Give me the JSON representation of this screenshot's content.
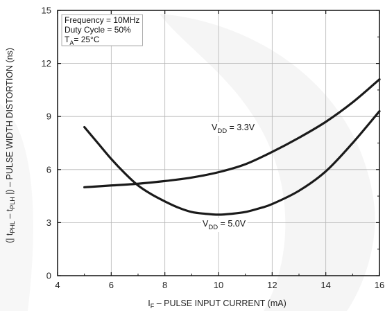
{
  "chart_data": {
    "type": "line",
    "title": "",
    "xlabel_prefix": "I",
    "xlabel_sub": "F",
    "xlabel_rest": " – PULSE INPUT CURRENT (mA)",
    "ylabel_prefix": "(| t",
    "ylabel_sub1": "PHL",
    "ylabel_mid": " – t",
    "ylabel_sub2": "PLH",
    "ylabel_rest": " |) – PULSE WIDTH DISTORTION (ns)",
    "xlim": [
      4,
      16
    ],
    "ylim": [
      0,
      15
    ],
    "xticks": [
      "4",
      "6",
      "8",
      "10",
      "12",
      "14",
      "16"
    ],
    "yticks": [
      "0",
      "3",
      "6",
      "9",
      "12",
      "15"
    ],
    "grid": true,
    "conditions": {
      "line1": "Frequency = 10MHz",
      "line2": "Duty Cycle = 50%",
      "line3_prefix": "T",
      "line3_sub": "A",
      "line3_rest": "= 25°C"
    },
    "series": [
      {
        "name": "VDD = 3.3V",
        "label_prefix": "V",
        "label_sub": "DD",
        "label_rest": " = 3.3V",
        "x": [
          5,
          6,
          7,
          8,
          9,
          10,
          11,
          12,
          13,
          14,
          15,
          16
        ],
        "y": [
          5.0,
          5.1,
          5.2,
          5.35,
          5.55,
          5.85,
          6.3,
          7.0,
          7.8,
          8.7,
          9.8,
          11.1
        ]
      },
      {
        "name": "VDD = 5.0V",
        "label_prefix": "V",
        "label_sub": "DD",
        "label_rest": " = 5.0V",
        "x": [
          5,
          5.5,
          6,
          6.5,
          7,
          7.5,
          8,
          8.5,
          9,
          9.5,
          10,
          10.5,
          11,
          11.5,
          12,
          13,
          14,
          15,
          16
        ],
        "y": [
          8.4,
          7.5,
          6.6,
          5.8,
          5.1,
          4.6,
          4.2,
          3.85,
          3.6,
          3.5,
          3.45,
          3.5,
          3.6,
          3.8,
          4.05,
          4.8,
          5.9,
          7.5,
          9.3
        ]
      }
    ]
  }
}
